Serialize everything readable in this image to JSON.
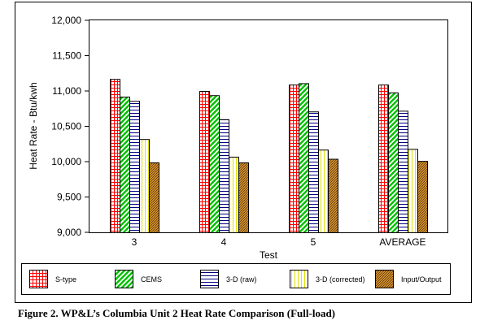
{
  "chart_data": {
    "type": "bar",
    "categories": [
      "3",
      "4",
      "5",
      "AVERAGE"
    ],
    "series": [
      {
        "name": "S-type",
        "values": [
          11170,
          11000,
          11090,
          11090
        ]
      },
      {
        "name": "CEMS",
        "values": [
          10920,
          10940,
          11110,
          10980
        ]
      },
      {
        "name": "3-D (raw)",
        "values": [
          10860,
          10600,
          10710,
          10720
        ]
      },
      {
        "name": "3-D (corrected)",
        "values": [
          10320,
          10070,
          10170,
          10180
        ]
      },
      {
        "name": "Input/Output",
        "values": [
          9990,
          9990,
          10040,
          10010
        ]
      }
    ],
    "xlabel": "Test",
    "ylabel": "Heat Rate - Btu/kwh",
    "ylim": [
      9000,
      12000
    ],
    "yticks": [
      "9,000",
      "9,500",
      "10,000",
      "10,500",
      "11,000",
      "11,500",
      "12,000"
    ],
    "legend_position": "bottom",
    "grid": false
  },
  "caption": "Figure 2. WP&L’s Columbia Unit 2 Heat Rate Comparison (Full-load)"
}
